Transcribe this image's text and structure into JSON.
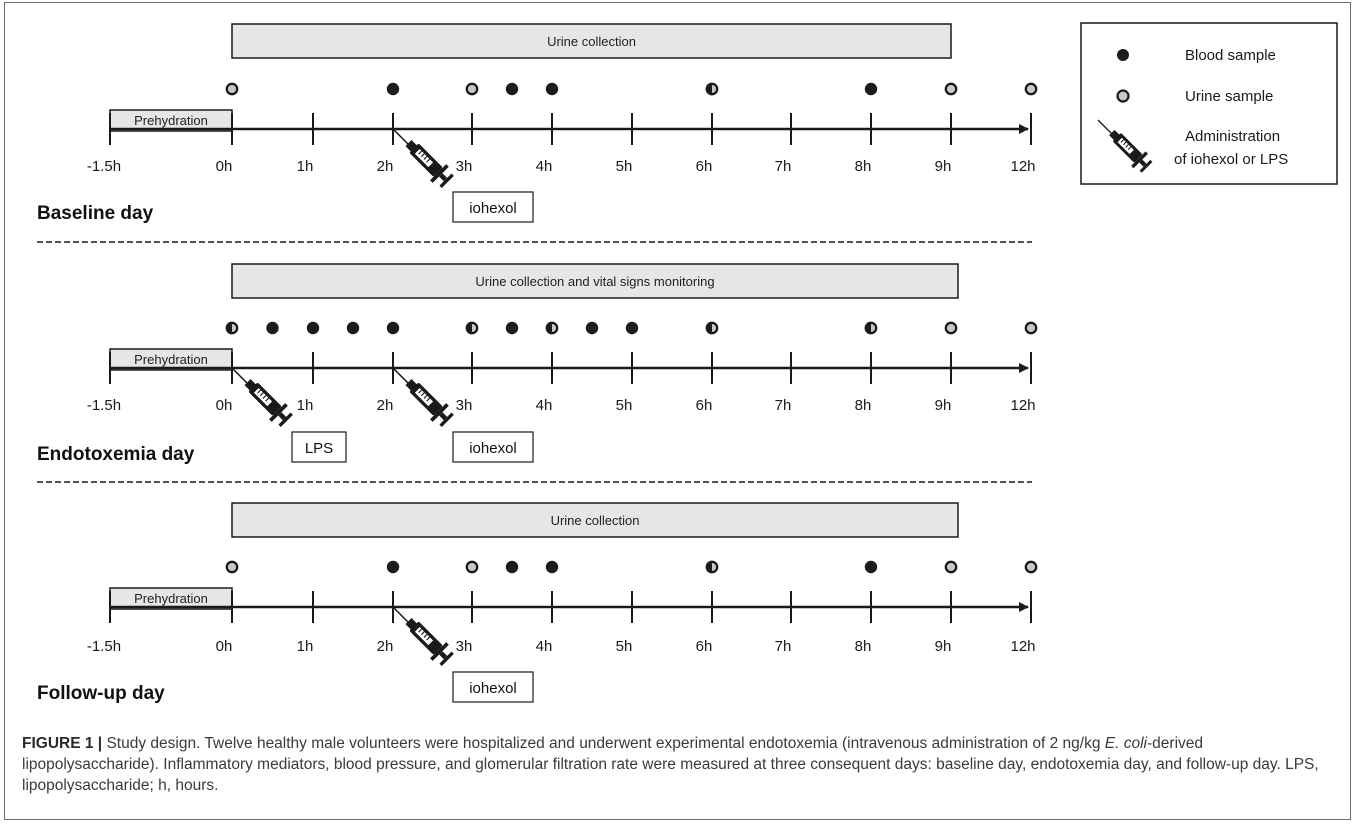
{
  "days": [
    {
      "title": "Baseline day",
      "bar_label": "Urine collection",
      "prehydration": "Prehydration",
      "ticks": [
        "-1.5h",
        "0h",
        "1h",
        "2h",
        "3h",
        "4h",
        "5h",
        "6h",
        "7h",
        "8h",
        "9h",
        "12h"
      ],
      "samples": [
        {
          "t": 0,
          "kind": "urine"
        },
        {
          "t": 2,
          "kind": "blood"
        },
        {
          "t": 3,
          "kind": "urine"
        },
        {
          "t": 3.5,
          "kind": "blood"
        },
        {
          "t": 4,
          "kind": "blood"
        },
        {
          "t": 6,
          "kind": "both"
        },
        {
          "t": 8,
          "kind": "blood"
        },
        {
          "t": 9,
          "kind": "urine"
        },
        {
          "t": 12,
          "kind": "urine"
        }
      ],
      "injections": [
        {
          "t": 2,
          "label": "iohexol"
        }
      ]
    },
    {
      "title": "Endotoxemia day",
      "bar_label": "Urine collection and vital signs monitoring",
      "prehydration": "Prehydration",
      "ticks": [
        "-1.5h",
        "0h",
        "1h",
        "2h",
        "3h",
        "4h",
        "5h",
        "6h",
        "7h",
        "8h",
        "9h",
        "12h"
      ],
      "samples": [
        {
          "t": 0,
          "kind": "both"
        },
        {
          "t": 0.5,
          "kind": "blood"
        },
        {
          "t": 1,
          "kind": "blood"
        },
        {
          "t": 1.5,
          "kind": "blood"
        },
        {
          "t": 2,
          "kind": "blood"
        },
        {
          "t": 3,
          "kind": "both"
        },
        {
          "t": 3.5,
          "kind": "blood"
        },
        {
          "t": 4,
          "kind": "both"
        },
        {
          "t": 4.5,
          "kind": "blood"
        },
        {
          "t": 5,
          "kind": "blood"
        },
        {
          "t": 6,
          "kind": "both"
        },
        {
          "t": 8,
          "kind": "both"
        },
        {
          "t": 9,
          "kind": "urine"
        },
        {
          "t": 12,
          "kind": "urine"
        }
      ],
      "injections": [
        {
          "t": 0,
          "label": "LPS"
        },
        {
          "t": 2,
          "label": "iohexol"
        }
      ]
    },
    {
      "title": "Follow-up day",
      "bar_label": "Urine collection",
      "prehydration": "Prehydration",
      "ticks": [
        "-1.5h",
        "0h",
        "1h",
        "2h",
        "3h",
        "4h",
        "5h",
        "6h",
        "7h",
        "8h",
        "9h",
        "12h"
      ],
      "samples": [
        {
          "t": 0,
          "kind": "urine"
        },
        {
          "t": 2,
          "kind": "blood"
        },
        {
          "t": 3,
          "kind": "urine"
        },
        {
          "t": 3.5,
          "kind": "blood"
        },
        {
          "t": 4,
          "kind": "blood"
        },
        {
          "t": 6,
          "kind": "both"
        },
        {
          "t": 8,
          "kind": "blood"
        },
        {
          "t": 9,
          "kind": "urine"
        },
        {
          "t": 12,
          "kind": "urine"
        }
      ],
      "injections": [
        {
          "t": 2,
          "label": "iohexol"
        }
      ]
    }
  ],
  "legend": {
    "blood": "Blood sample",
    "urine": "Urine sample",
    "admin_line1": "Administration",
    "admin_line2": "of iohexol or LPS"
  },
  "caption": {
    "label": "FIGURE 1 |",
    "text_before_italic": " Study design. Twelve healthy male volunteers were hospitalized and underwent experimental endotoxemia (intravenous administration of 2 ng/kg ",
    "italic": "E. coli",
    "text_after_italic": "-derived lipopolysaccharide). Inflammatory mediators, blood pressure, and glomerular filtration rate were measured at three consequent days: baseline day, endotoxemia day, and follow-up day. LPS, lipopolysaccharide; h, hours."
  },
  "colors": {
    "blood": "#1c1c1c",
    "urine": "#c9c9c9",
    "bar_fill": "#e6e6e6",
    "line": "#1a1a1a"
  }
}
